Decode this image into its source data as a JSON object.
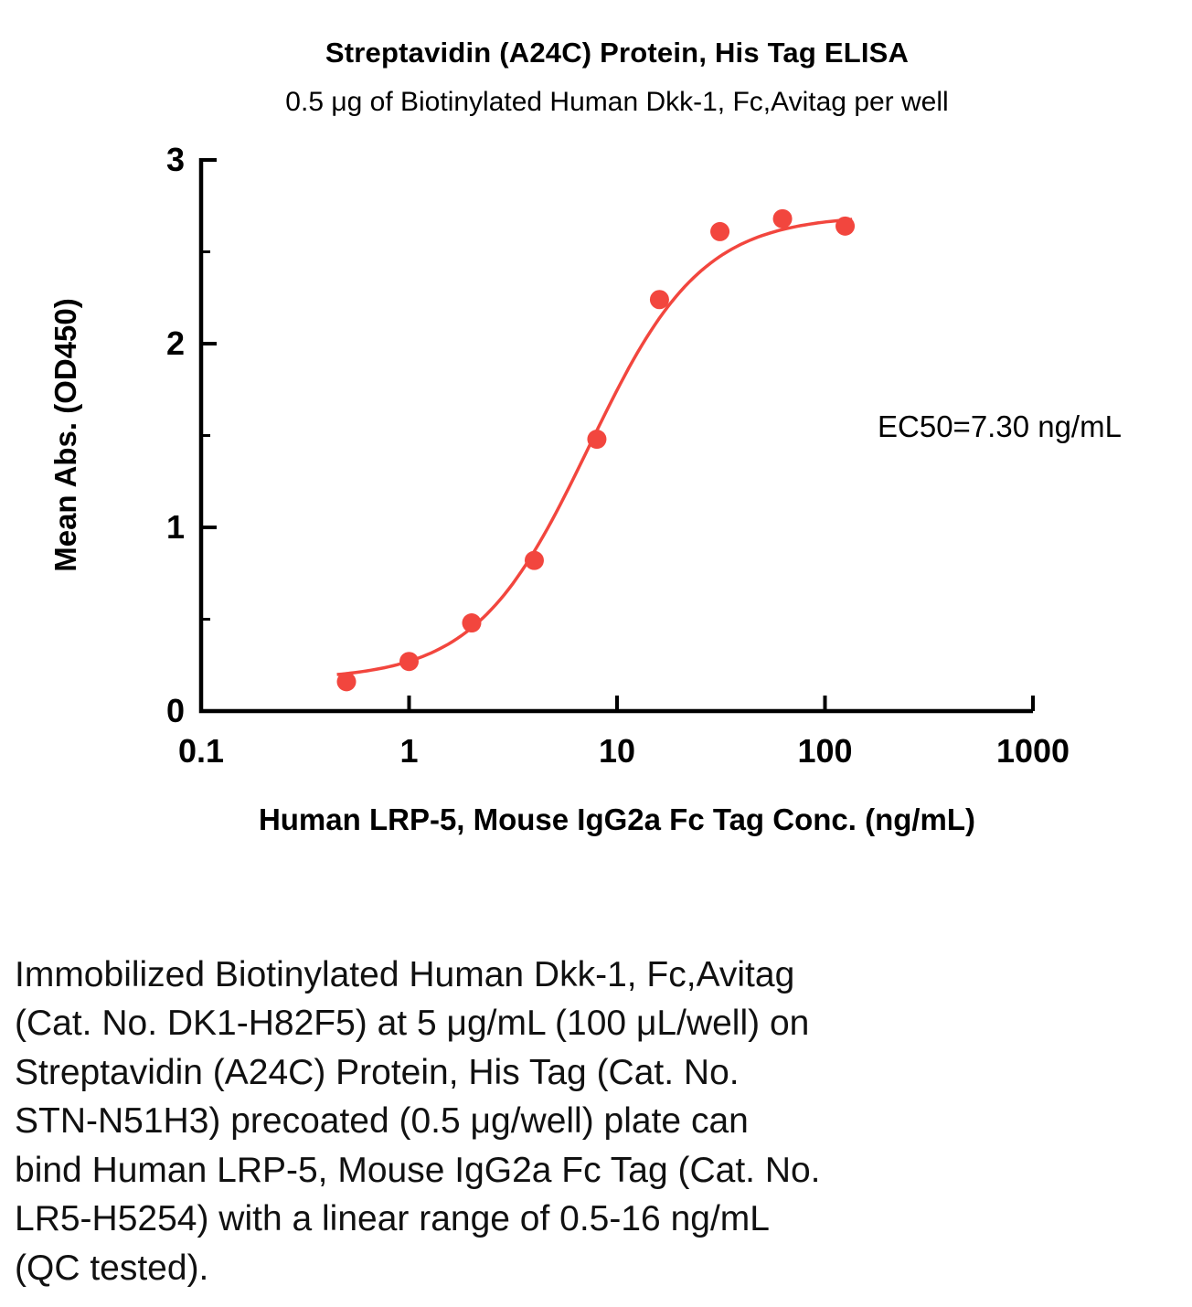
{
  "chart_data": {
    "type": "scatter",
    "title": "Streptavidin (A24C) Protein, His Tag ELISA",
    "subtitle": "0.5 μg of Biotinylated Human Dkk-1, Fc,Avitag per well",
    "xlabel": "Human LRP-5, Mouse IgG2a Fc Tag Conc. (ng/mL)",
    "ylabel": "Mean Abs. (OD450)",
    "xscale": "log",
    "xlim": [
      0.1,
      1000
    ],
    "ylim": [
      0,
      3
    ],
    "x_ticks": [
      0.1,
      1,
      10,
      100,
      1000
    ],
    "x_tick_labels": [
      "0.1",
      "1",
      "10",
      "100",
      "1000"
    ],
    "y_ticks": [
      0,
      1,
      2,
      3
    ],
    "y_tick_labels": [
      "0",
      "1",
      "2",
      "3"
    ],
    "y_minor_ticks": [
      0.5,
      1.5,
      2.5
    ],
    "points": {
      "x": [
        0.5,
        1,
        2,
        4,
        8,
        16,
        31.25,
        62.5,
        125
      ],
      "y": [
        0.16,
        0.27,
        0.48,
        0.82,
        1.48,
        2.24,
        2.61,
        2.68,
        2.64
      ]
    },
    "fit_curve": {
      "model": "4PL",
      "bottom": 0.17,
      "top": 2.7,
      "ec50": 7.3,
      "hill": 1.6,
      "x_range": [
        0.45,
        135
      ]
    },
    "annotation": "EC50=7.30 ng/mL",
    "accent_color": "#F2463E",
    "axis_color": "#000000",
    "legend": "none",
    "grid": "off"
  },
  "caption_lines": [
    "Immobilized Biotinylated Human Dkk-1, Fc,Avitag",
    "(Cat. No. DK1-H82F5) at 5 μg/mL (100 μL/well) on",
    "Streptavidin (A24C) Protein, His Tag (Cat. No.",
    "STN-N51H3) precoated (0.5 μg/well) plate can",
    "bind Human LRP-5, Mouse IgG2a Fc Tag (Cat. No.",
    "LR5-H5254) with a linear range of 0.5-16 ng/mL",
    "(QC tested)."
  ]
}
